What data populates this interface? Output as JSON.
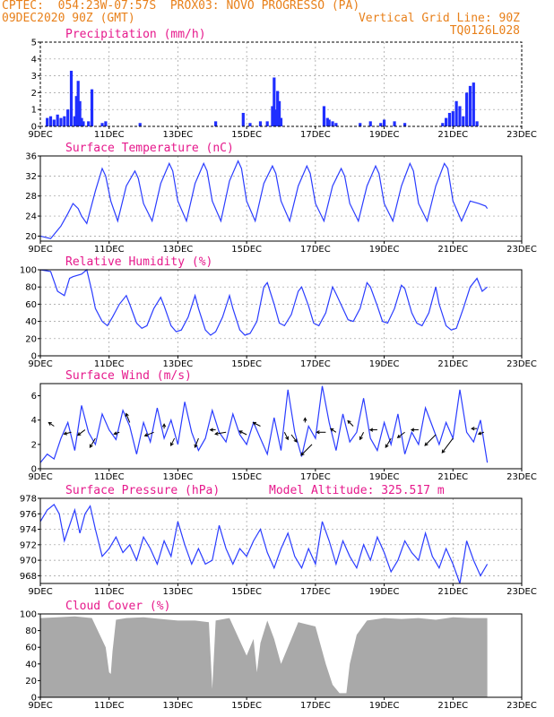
{
  "header": {
    "line1": "CPTEC:  054:23W-07:57S  PROX03: NOVO PROGRESSO (PA)",
    "line2_left": "09DEC2020 90Z (GMT)",
    "line2_right": "Vertical Grid Line: 90Z",
    "line3_right": "TQ0126L028"
  },
  "colors": {
    "series": "#2a3cff",
    "bars": "#1f2eff",
    "cloud": "#a9a9a9",
    "title": "#e6198c",
    "header": "#e8801a"
  },
  "x_ticks": [
    "9DEC",
    "11DEC",
    "13DEC",
    "15DEC",
    "17DEC",
    "19DEC",
    "21DEC",
    "23DEC"
  ],
  "chart_data": [
    {
      "type": "bar",
      "title": "Precipitation (mm/h)",
      "ylim": [
        0,
        5
      ],
      "yticks": [
        "0",
        "1",
        "2",
        "3",
        "4",
        "5"
      ],
      "grid": true,
      "x_unit": "days since 9DEC",
      "x": [
        0.2,
        0.3,
        0.4,
        0.5,
        0.6,
        0.7,
        0.8,
        0.9,
        1.0,
        1.05,
        1.1,
        1.15,
        1.2,
        1.25,
        1.4,
        1.5,
        1.8,
        1.9,
        2.9,
        5.1,
        5.9,
        6.1,
        6.4,
        6.6,
        6.75,
        6.8,
        6.85,
        6.9,
        6.95,
        7.0,
        8.25,
        8.35,
        8.4,
        8.5,
        8.6,
        9.3,
        9.6,
        9.9,
        10.0,
        10.3,
        10.6,
        11.7,
        11.8,
        11.9,
        12.0,
        12.1,
        12.2,
        12.3,
        12.4,
        12.5,
        12.6,
        12.7
      ],
      "values": [
        0.5,
        0.6,
        0.4,
        0.7,
        0.5,
        0.6,
        1.0,
        3.3,
        0.6,
        1.8,
        2.7,
        1.5,
        0.5,
        0.3,
        0.3,
        2.2,
        0.2,
        0.3,
        0.2,
        0.3,
        0.8,
        0.2,
        0.3,
        0.3,
        1.2,
        2.9,
        1.0,
        2.1,
        1.5,
        0.5,
        1.2,
        0.5,
        0.4,
        0.3,
        0.2,
        0.2,
        0.3,
        0.2,
        0.4,
        0.3,
        0.2,
        0.2,
        0.5,
        0.8,
        0.9,
        1.5,
        1.2,
        0.6,
        2.0,
        2.4,
        2.6,
        0.3
      ]
    },
    {
      "type": "line",
      "title": "Surface Temperature (nC)",
      "ylim": [
        19,
        36
      ],
      "yticks": [
        "20",
        "24",
        "28",
        "32",
        "36"
      ],
      "grid": true,
      "x_unit": "days since 9DEC",
      "x": [
        0.0,
        0.3,
        0.6,
        0.8,
        0.95,
        1.1,
        1.2,
        1.35,
        1.6,
        1.8,
        1.9,
        2.05,
        2.25,
        2.5,
        2.75,
        2.85,
        3.0,
        3.25,
        3.5,
        3.75,
        3.85,
        4.0,
        4.25,
        4.5,
        4.75,
        4.85,
        5.0,
        5.25,
        5.5,
        5.75,
        5.85,
        6.0,
        6.25,
        6.5,
        6.75,
        6.85,
        7.0,
        7.25,
        7.5,
        7.75,
        7.85,
        8.0,
        8.25,
        8.5,
        8.75,
        8.85,
        9.0,
        9.25,
        9.5,
        9.75,
        9.85,
        10.0,
        10.25,
        10.5,
        10.75,
        10.85,
        11.0,
        11.25,
        11.5,
        11.75,
        11.85,
        12.0,
        12.25,
        12.5,
        12.75,
        12.95,
        13.0
      ],
      "values": [
        20.0,
        19.5,
        22.0,
        24.5,
        26.5,
        25.5,
        24.0,
        22.5,
        29.0,
        33.5,
        32.0,
        27.0,
        23.0,
        30.0,
        33.0,
        31.5,
        26.5,
        23.0,
        30.5,
        34.5,
        33.0,
        27.0,
        23.0,
        30.5,
        34.5,
        33.0,
        27.0,
        23.0,
        31.0,
        35.0,
        33.5,
        27.0,
        23.0,
        30.5,
        34.0,
        32.5,
        27.0,
        23.0,
        30.0,
        34.0,
        32.5,
        26.5,
        23.0,
        30.0,
        33.5,
        32.0,
        26.5,
        23.0,
        30.0,
        34.0,
        32.5,
        26.5,
        23.0,
        30.0,
        34.5,
        33.0,
        26.5,
        23.0,
        30.0,
        34.5,
        33.5,
        27.0,
        23.0,
        27.0,
        26.5,
        26.0,
        25.5
      ]
    },
    {
      "type": "line",
      "title": "Relative Humidity (%)",
      "ylim": [
        0,
        100
      ],
      "yticks": [
        "0",
        "20",
        "40",
        "60",
        "80",
        "100"
      ],
      "grid": true,
      "x_unit": "days since 9DEC",
      "x": [
        0.0,
        0.3,
        0.5,
        0.7,
        0.85,
        0.95,
        1.2,
        1.35,
        1.5,
        1.6,
        1.8,
        1.95,
        2.1,
        2.3,
        2.5,
        2.6,
        2.8,
        2.95,
        3.1,
        3.3,
        3.5,
        3.6,
        3.8,
        3.95,
        4.1,
        4.3,
        4.5,
        4.6,
        4.8,
        4.95,
        5.1,
        5.3,
        5.5,
        5.6,
        5.8,
        5.95,
        6.1,
        6.3,
        6.5,
        6.6,
        6.8,
        6.95,
        7.1,
        7.3,
        7.5,
        7.6,
        7.8,
        7.95,
        8.1,
        8.3,
        8.5,
        8.6,
        8.8,
        8.95,
        9.1,
        9.3,
        9.5,
        9.6,
        9.8,
        9.95,
        10.1,
        10.3,
        10.5,
        10.6,
        10.8,
        10.95,
        11.1,
        11.3,
        11.5,
        11.6,
        11.8,
        11.95,
        12.1,
        12.3,
        12.5,
        12.7,
        12.85,
        13.0
      ],
      "values": [
        100,
        98,
        75,
        70,
        90,
        92,
        95,
        100,
        75,
        55,
        40,
        35,
        45,
        60,
        70,
        60,
        38,
        32,
        35,
        55,
        68,
        58,
        35,
        28,
        30,
        45,
        70,
        55,
        30,
        24,
        28,
        45,
        70,
        55,
        30,
        24,
        26,
        40,
        80,
        85,
        60,
        38,
        35,
        48,
        75,
        80,
        58,
        38,
        35,
        50,
        80,
        72,
        55,
        42,
        40,
        55,
        85,
        80,
        58,
        40,
        38,
        55,
        82,
        78,
        50,
        38,
        35,
        50,
        80,
        60,
        35,
        30,
        32,
        55,
        80,
        90,
        75,
        80
      ]
    },
    {
      "type": "line",
      "title": "Surface Wind (m/s)",
      "ylim": [
        0,
        7
      ],
      "yticks": [
        "0",
        "2",
        "4",
        "6"
      ],
      "grid": false,
      "x_unit": "days since 9DEC",
      "x": [
        0.0,
        0.2,
        0.4,
        0.6,
        0.8,
        1.0,
        1.2,
        1.4,
        1.6,
        1.8,
        2.0,
        2.2,
        2.4,
        2.6,
        2.8,
        3.0,
        3.2,
        3.4,
        3.6,
        3.8,
        4.0,
        4.2,
        4.4,
        4.6,
        4.8,
        5.0,
        5.2,
        5.4,
        5.6,
        5.8,
        6.0,
        6.2,
        6.4,
        6.6,
        6.8,
        7.0,
        7.2,
        7.4,
        7.6,
        7.8,
        8.0,
        8.2,
        8.4,
        8.6,
        8.8,
        9.0,
        9.2,
        9.4,
        9.6,
        9.8,
        10.0,
        10.2,
        10.4,
        10.6,
        10.8,
        11.0,
        11.2,
        11.4,
        11.6,
        11.8,
        12.0,
        12.2,
        12.4,
        12.6,
        12.8,
        13.0
      ],
      "values": [
        0.5,
        1.2,
        0.8,
        2.5,
        3.8,
        1.5,
        5.2,
        3.0,
        2.0,
        4.5,
        3.2,
        2.4,
        4.8,
        3.5,
        1.2,
        3.8,
        2.2,
        5.0,
        2.5,
        4.0,
        2.0,
        5.5,
        3.0,
        1.5,
        2.5,
        4.8,
        3.0,
        2.2,
        4.5,
        2.8,
        2.0,
        3.8,
        2.5,
        1.2,
        4.2,
        1.5,
        6.5,
        3.0,
        1.0,
        3.5,
        2.5,
        6.8,
        3.8,
        1.5,
        4.5,
        2.2,
        3.0,
        5.8,
        2.5,
        1.5,
        3.8,
        2.0,
        4.5,
        1.2,
        3.0,
        2.0,
        5.0,
        3.5,
        2.0,
        3.8,
        2.5,
        6.5,
        3.0,
        2.2,
        4.0,
        0.5
      ],
      "arrows": [
        {
          "x": 0.4,
          "y": 3.5,
          "dx": -6,
          "dy": -4
        },
        {
          "x": 0.9,
          "y": 3.0,
          "dx": -8,
          "dy": 2
        },
        {
          "x": 1.3,
          "y": 3.2,
          "dx": -8,
          "dy": 6
        },
        {
          "x": 1.6,
          "y": 2.5,
          "dx": -6,
          "dy": 10
        },
        {
          "x": 2.3,
          "y": 3.0,
          "dx": -6,
          "dy": 2
        },
        {
          "x": 2.6,
          "y": 3.8,
          "dx": -4,
          "dy": -10
        },
        {
          "x": 3.3,
          "y": 3.0,
          "dx": -10,
          "dy": 4
        },
        {
          "x": 3.6,
          "y": 3.3,
          "dx": 0,
          "dy": -5
        },
        {
          "x": 3.9,
          "y": 2.5,
          "dx": -4,
          "dy": 8
        },
        {
          "x": 4.6,
          "y": 2.5,
          "dx": -4,
          "dy": 10
        },
        {
          "x": 5.1,
          "y": 3.2,
          "dx": -6,
          "dy": 0
        },
        {
          "x": 5.4,
          "y": 3.0,
          "dx": -12,
          "dy": 2
        },
        {
          "x": 6.0,
          "y": 2.8,
          "dx": -8,
          "dy": -4
        },
        {
          "x": 6.4,
          "y": 3.5,
          "dx": -8,
          "dy": -4
        },
        {
          "x": 7.1,
          "y": 3.0,
          "dx": 4,
          "dy": 8
        },
        {
          "x": 7.3,
          "y": 2.8,
          "dx": 6,
          "dy": 8
        },
        {
          "x": 7.7,
          "y": 3.8,
          "dx": 0,
          "dy": -5
        },
        {
          "x": 7.9,
          "y": 2.0,
          "dx": -12,
          "dy": 12
        },
        {
          "x": 8.3,
          "y": 3.0,
          "dx": -10,
          "dy": 0
        },
        {
          "x": 8.6,
          "y": 3.0,
          "dx": -6,
          "dy": -4
        },
        {
          "x": 9.1,
          "y": 3.5,
          "dx": -6,
          "dy": -6
        },
        {
          "x": 9.4,
          "y": 3.0,
          "dx": -4,
          "dy": 8
        },
        {
          "x": 9.8,
          "y": 3.2,
          "dx": -8,
          "dy": 0
        },
        {
          "x": 10.2,
          "y": 2.5,
          "dx": -6,
          "dy": 10
        },
        {
          "x": 10.6,
          "y": 3.0,
          "dx": -8,
          "dy": 6
        },
        {
          "x": 11.0,
          "y": 3.2,
          "dx": -8,
          "dy": 0
        },
        {
          "x": 11.5,
          "y": 2.8,
          "dx": -12,
          "dy": 12
        },
        {
          "x": 12.0,
          "y": 2.5,
          "dx": -12,
          "dy": 16
        },
        {
          "x": 12.7,
          "y": 3.3,
          "dx": -6,
          "dy": 0
        },
        {
          "x": 12.9,
          "y": 3.0,
          "dx": -6,
          "dy": 2
        }
      ]
    },
    {
      "type": "line",
      "title": "Surface Pressure (hPa)",
      "annotation": "Model Altitude: 325.517 m",
      "ylim": [
        967,
        978
      ],
      "yticks": [
        "968",
        "970",
        "972",
        "974",
        "976",
        "978"
      ],
      "grid": true,
      "x_unit": "days since 9DEC",
      "x": [
        0.0,
        0.2,
        0.4,
        0.55,
        0.7,
        0.85,
        1.0,
        1.15,
        1.3,
        1.45,
        1.6,
        1.8,
        2.0,
        2.2,
        2.4,
        2.6,
        2.8,
        3.0,
        3.2,
        3.4,
        3.6,
        3.8,
        4.0,
        4.2,
        4.4,
        4.6,
        4.8,
        5.0,
        5.2,
        5.4,
        5.6,
        5.8,
        6.0,
        6.2,
        6.4,
        6.6,
        6.8,
        7.0,
        7.2,
        7.4,
        7.6,
        7.8,
        8.0,
        8.2,
        8.4,
        8.6,
        8.8,
        9.0,
        9.2,
        9.4,
        9.6,
        9.8,
        10.0,
        10.2,
        10.4,
        10.6,
        10.8,
        11.0,
        11.2,
        11.4,
        11.6,
        11.8,
        12.0,
        12.2,
        12.4,
        12.6,
        12.8,
        13.0
      ],
      "values": [
        975.0,
        976.5,
        977.2,
        976.0,
        972.5,
        974.5,
        976.5,
        973.5,
        976.0,
        977.0,
        974.0,
        970.5,
        971.5,
        973.0,
        971.0,
        972.0,
        970.0,
        973.0,
        971.5,
        969.5,
        972.5,
        970.5,
        975.0,
        972.0,
        969.5,
        971.5,
        969.5,
        970.0,
        974.5,
        971.5,
        969.5,
        971.5,
        970.5,
        972.5,
        974.0,
        971.0,
        969.0,
        971.5,
        973.5,
        970.5,
        969.0,
        971.5,
        969.5,
        975.0,
        972.5,
        969.5,
        972.5,
        970.5,
        969.0,
        972.0,
        970.0,
        973.0,
        971.0,
        968.5,
        970.0,
        972.5,
        971.0,
        970.0,
        973.5,
        970.5,
        969.0,
        971.5,
        969.5,
        967.0,
        972.5,
        970.0,
        968.0,
        969.5
      ]
    },
    {
      "type": "area",
      "title": "Cloud Cover (%)",
      "ylim": [
        0,
        100
      ],
      "yticks": [
        "0",
        "20",
        "40",
        "60",
        "80",
        "100"
      ],
      "grid": false,
      "x_unit": "days since 9DEC",
      "x": [
        0.0,
        0.5,
        1.0,
        1.5,
        1.9,
        2.0,
        2.05,
        2.1,
        2.2,
        2.5,
        3.0,
        3.5,
        4.0,
        4.5,
        4.9,
        5.0,
        5.1,
        5.5,
        6.0,
        6.2,
        6.3,
        6.4,
        6.6,
        6.8,
        7.0,
        7.5,
        8.0,
        8.3,
        8.5,
        8.7,
        8.9,
        9.0,
        9.2,
        9.5,
        10.0,
        10.5,
        11.0,
        11.5,
        12.0,
        12.5,
        13.0
      ],
      "values": [
        95,
        96,
        97,
        95,
        60,
        30,
        28,
        55,
        93,
        95,
        96,
        94,
        92,
        92,
        90,
        10,
        92,
        95,
        50,
        70,
        30,
        65,
        92,
        70,
        40,
        90,
        85,
        40,
        15,
        5,
        5,
        40,
        75,
        92,
        95,
        94,
        95,
        93,
        96,
        95,
        95
      ]
    }
  ]
}
